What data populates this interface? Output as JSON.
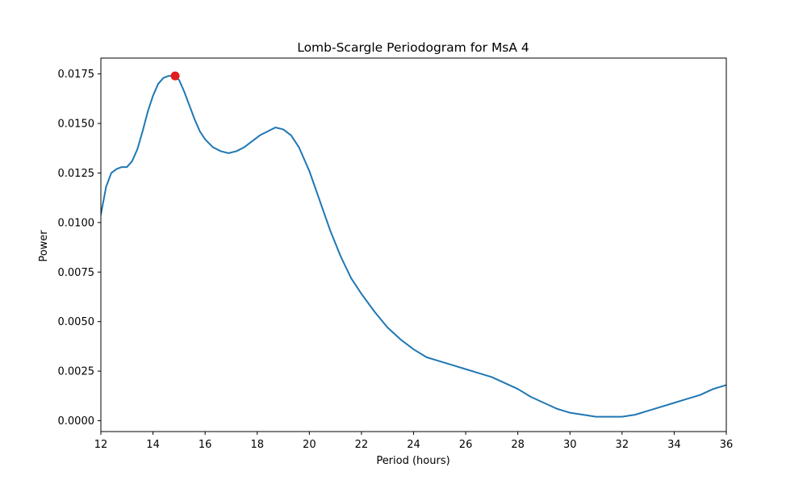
{
  "chart_data": {
    "type": "line",
    "title": "Lomb-Scargle Periodogram for MsA 4",
    "xlabel": "Period (hours)",
    "ylabel": "Power",
    "xlim": [
      12,
      36
    ],
    "ylim": [
      -0.00055,
      0.0183
    ],
    "xticks": [
      12,
      14,
      16,
      18,
      20,
      22,
      24,
      26,
      28,
      30,
      32,
      34,
      36
    ],
    "yticks": [
      0.0,
      0.0025,
      0.005,
      0.0075,
      0.01,
      0.0125,
      0.015,
      0.0175
    ],
    "ytick_labels": [
      "0.0000",
      "0.0025",
      "0.0050",
      "0.0075",
      "0.0100",
      "0.0125",
      "0.0150",
      "0.0175"
    ],
    "grid": false,
    "series": [
      {
        "color": "#1f77b4",
        "x": [
          12.0,
          12.2,
          12.4,
          12.6,
          12.8,
          13.0,
          13.2,
          13.4,
          13.6,
          13.8,
          14.0,
          14.2,
          14.4,
          14.6,
          14.8,
          15.0,
          15.2,
          15.4,
          15.6,
          15.8,
          16.0,
          16.3,
          16.6,
          16.9,
          17.2,
          17.5,
          17.8,
          18.1,
          18.4,
          18.7,
          19.0,
          19.3,
          19.6,
          20.0,
          20.4,
          20.8,
          21.2,
          21.6,
          22.0,
          22.5,
          23.0,
          23.5,
          24.0,
          24.5,
          25.0,
          25.5,
          26.0,
          26.5,
          27.0,
          27.5,
          28.0,
          28.5,
          29.0,
          29.5,
          30.0,
          30.5,
          31.0,
          31.5,
          32.0,
          32.5,
          33.0,
          33.5,
          34.0,
          34.5,
          35.0,
          35.5,
          36.0
        ],
        "y": [
          0.0104,
          0.0118,
          0.0125,
          0.0127,
          0.0128,
          0.0128,
          0.0131,
          0.0137,
          0.0146,
          0.0156,
          0.0164,
          0.017,
          0.0173,
          0.0174,
          0.0174,
          0.0172,
          0.0166,
          0.0159,
          0.0152,
          0.0146,
          0.0142,
          0.0138,
          0.0136,
          0.0135,
          0.0136,
          0.0138,
          0.0141,
          0.0144,
          0.0146,
          0.0148,
          0.0147,
          0.0144,
          0.0138,
          0.0126,
          0.0111,
          0.0096,
          0.0083,
          0.0072,
          0.0064,
          0.0055,
          0.0047,
          0.0041,
          0.0036,
          0.0032,
          0.003,
          0.0028,
          0.0026,
          0.0024,
          0.0022,
          0.0019,
          0.0016,
          0.0012,
          0.0009,
          0.0006,
          0.0004,
          0.0003,
          0.0002,
          0.0002,
          0.0002,
          0.0003,
          0.0005,
          0.0007,
          0.0009,
          0.0011,
          0.0013,
          0.0016,
          0.0018
        ]
      }
    ],
    "peak_marker": {
      "x": 14.85,
      "y": 0.0174,
      "color": "#e41a1c"
    }
  }
}
